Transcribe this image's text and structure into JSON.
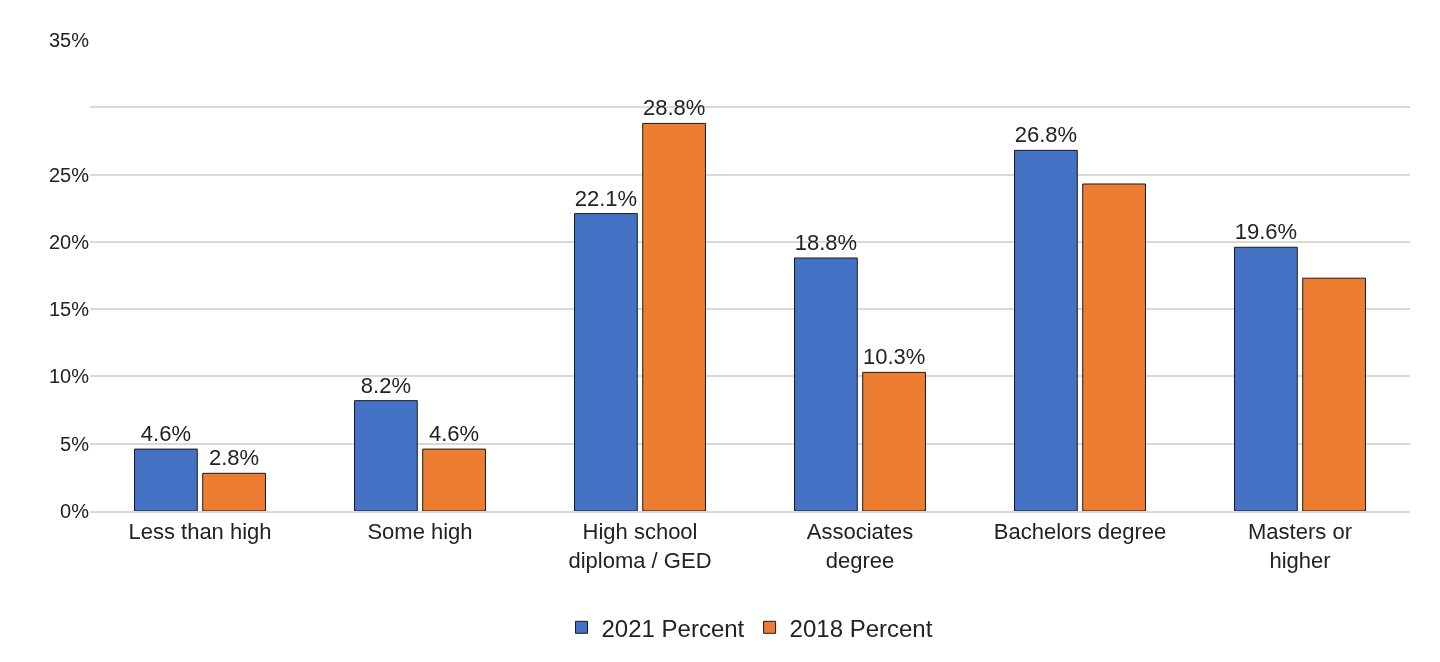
{
  "chart_data": {
    "type": "bar",
    "categories": [
      "Less than high",
      "Some high",
      "High school\ndiploma / GED",
      "Associates\ndegree",
      "Bachelors degree",
      "Masters or\nhigher"
    ],
    "series": [
      {
        "name": "2021 Percent",
        "color": "#4472c4",
        "values": [
          4.6,
          8.2,
          22.1,
          18.8,
          26.8,
          19.6
        ],
        "value_labels": [
          "4.6%",
          "8.2%",
          "22.1%",
          "18.8%",
          "26.8%",
          "19.6%"
        ]
      },
      {
        "name": "2018 Percent",
        "color": "#ed7d31",
        "values": [
          2.8,
          4.6,
          28.8,
          10.3,
          24.3,
          17.3
        ],
        "value_labels": [
          "2.8%",
          "4.6%",
          "28.8%",
          "10.3%",
          null,
          null
        ]
      }
    ],
    "ylim": [
      0,
      35
    ],
    "yticks": [
      {
        "value": 0,
        "label": "0%"
      },
      {
        "value": 5,
        "label": "5%"
      },
      {
        "value": 10,
        "label": "10%"
      },
      {
        "value": 15,
        "label": "15%"
      },
      {
        "value": 20,
        "label": "20%"
      },
      {
        "value": 25,
        "label": "25%"
      },
      {
        "value": 30,
        "label": null
      },
      {
        "value": 35,
        "label": "35%"
      }
    ],
    "grid": "y",
    "legend": "bottom"
  }
}
